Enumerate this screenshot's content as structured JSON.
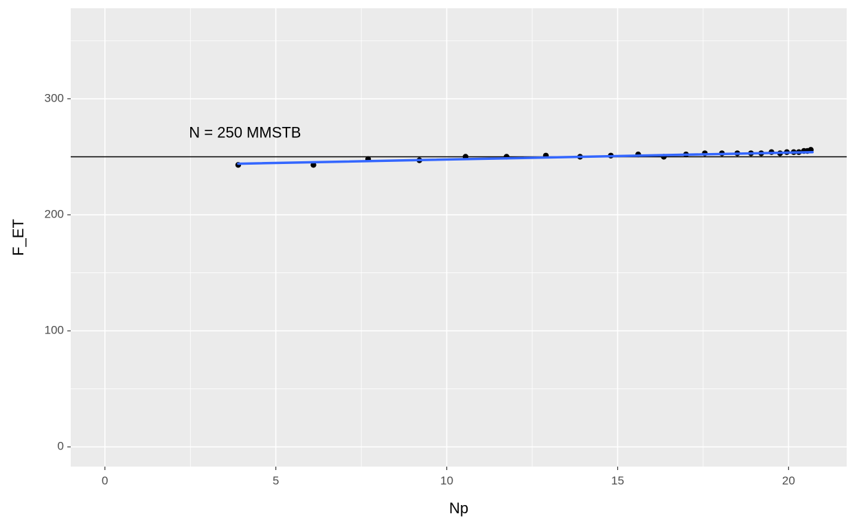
{
  "chart_data": {
    "type": "scatter",
    "xlabel": "Np",
    "ylabel": "F_ET",
    "xlim": [
      -1,
      21.7
    ],
    "ylim": [
      -17,
      378
    ],
    "x_ticks": [
      0,
      5,
      10,
      15,
      20
    ],
    "y_ticks": [
      0,
      100,
      200,
      300
    ],
    "x_tick_labels": [
      "0",
      "5",
      "10",
      "15",
      "20"
    ],
    "y_tick_labels": [
      "0",
      "100",
      "200",
      "300"
    ],
    "grid": true,
    "points": {
      "x": [
        3.9,
        6.1,
        7.7,
        9.2,
        10.55,
        11.75,
        12.9,
        13.9,
        14.8,
        15.6,
        16.35,
        17.0,
        17.55,
        18.05,
        18.5,
        18.9,
        19.2,
        19.5,
        19.75,
        19.95,
        20.15,
        20.3,
        20.45,
        20.55,
        20.65
      ],
      "y": [
        243,
        243,
        248,
        247,
        250,
        250,
        251,
        250,
        251,
        252,
        250,
        252,
        253,
        253,
        253,
        253,
        253,
        254,
        253,
        254,
        254,
        254,
        255,
        255,
        256
      ]
    },
    "fit_line": {
      "color": "#3366ff",
      "x": [
        3.9,
        20.7
      ],
      "y": [
        244,
        254
      ]
    },
    "reference_line": {
      "y": 250,
      "color": "#000000"
    },
    "annotation": {
      "text": "N = 250 MMSTB",
      "x": 4.1,
      "y": 270
    },
    "colors": {
      "panel": "#ebebeb",
      "grid": "#ffffff",
      "points": "#000000"
    }
  }
}
